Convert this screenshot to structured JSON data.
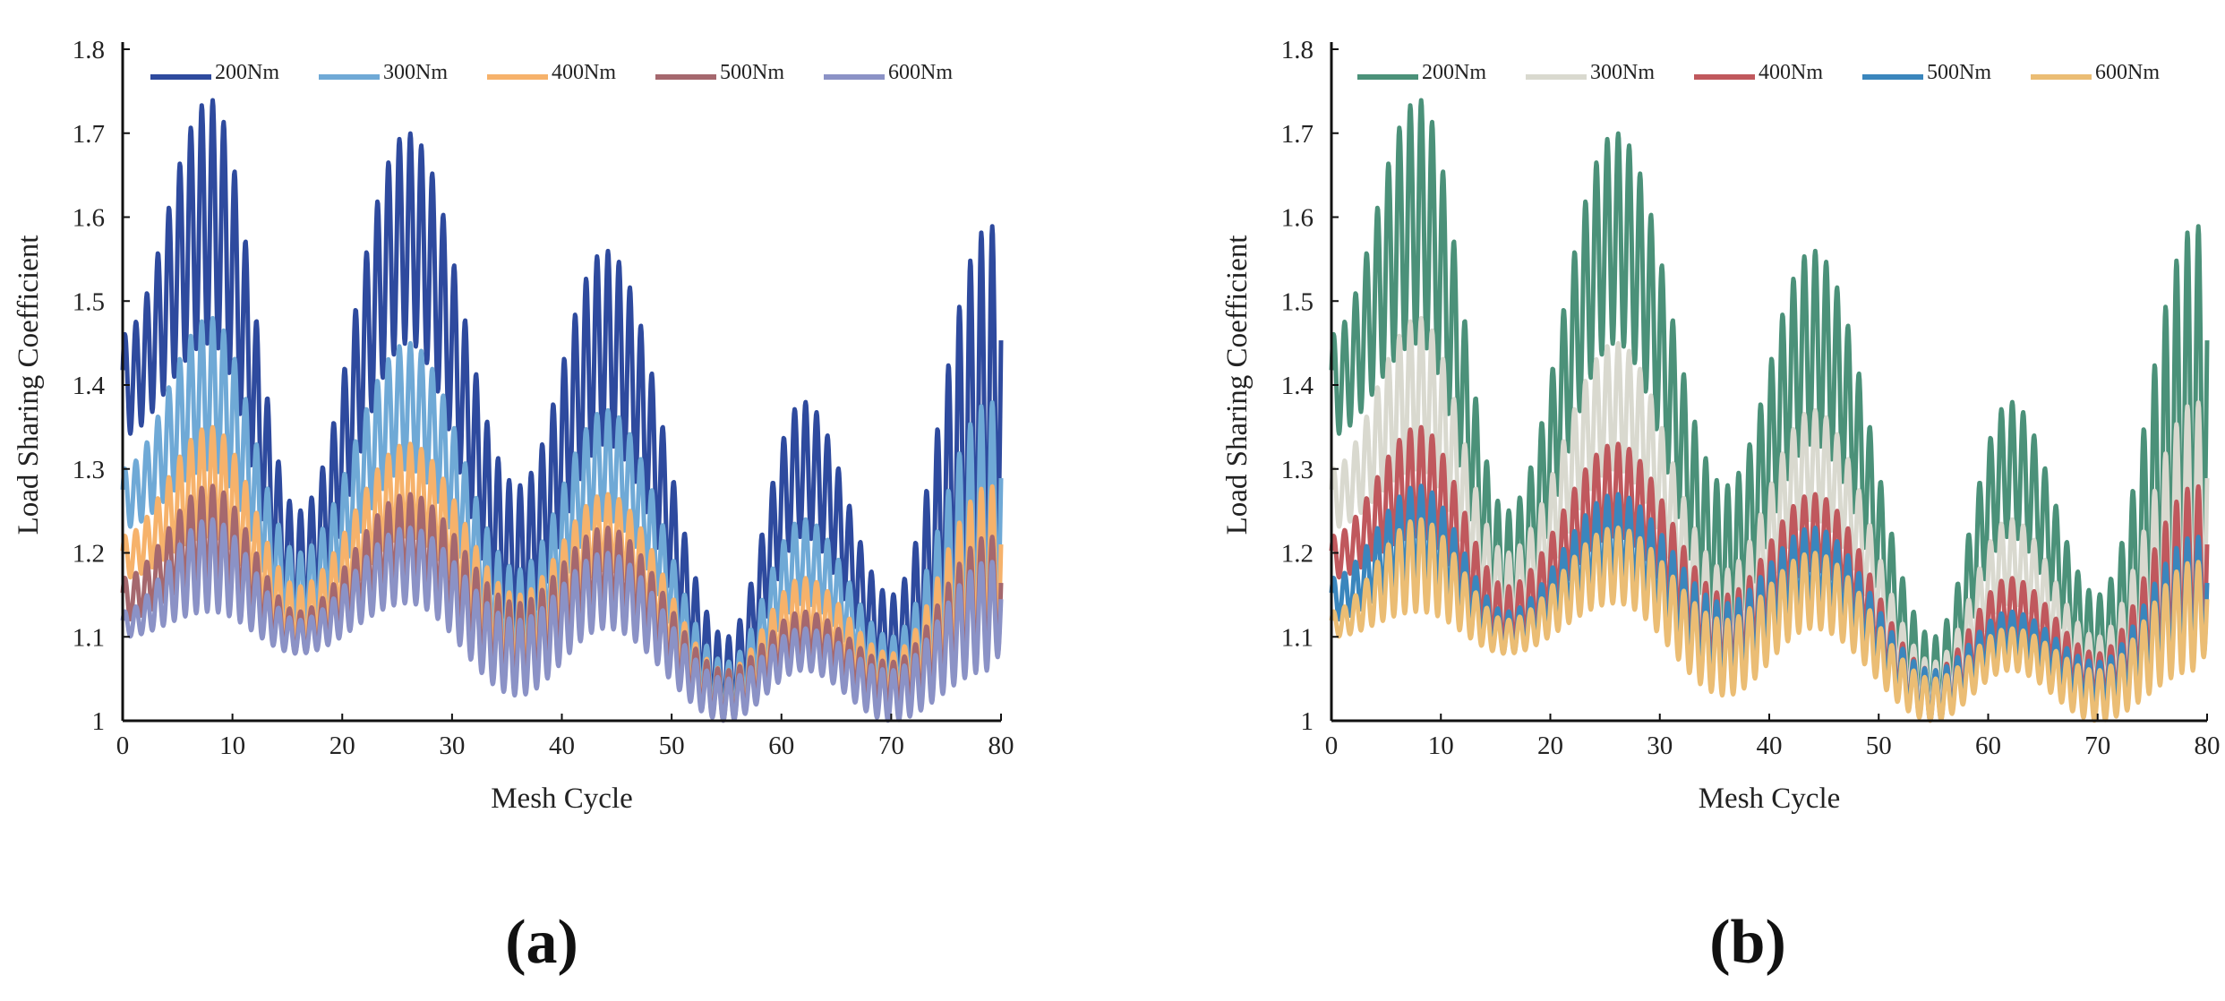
{
  "chart_data": [
    {
      "type": "line",
      "panel_label": "(a)",
      "title": "",
      "xlabel": "Mesh Cycle",
      "ylabel": "Load Sharing Coefficient",
      "xlim": [
        0,
        80
      ],
      "ylim": [
        1,
        1.8
      ],
      "xticks": [
        "0",
        "10",
        "20",
        "30",
        "40",
        "50",
        "60",
        "70",
        "80"
      ],
      "yticks": [
        "1",
        "1.1",
        "1.2",
        "1.3",
        "1.4",
        "1.5",
        "1.6",
        "1.7",
        "1.8"
      ],
      "legend_position": "top",
      "description_of_signal": "Each series oscillates at ~1 cycle per unit of mesh cycle, with a slow envelope; values below are envelope max/min at key mesh cycles.",
      "envelope_x": [
        0,
        8,
        16,
        26,
        36,
        44,
        55,
        62,
        70,
        79,
        80
      ],
      "series": [
        {
          "name": "200Nm",
          "color": "#2e4a9e",
          "upper": [
            1.46,
            1.74,
            1.25,
            1.7,
            1.28,
            1.56,
            1.1,
            1.38,
            1.15,
            1.59,
            1.58
          ],
          "lower": [
            1.34,
            1.45,
            1.12,
            1.45,
            1.11,
            1.33,
            1.01,
            1.22,
            1.05,
            1.18,
            1.22
          ]
        },
        {
          "name": "300Nm",
          "color": "#6fa9d6",
          "upper": [
            1.3,
            1.48,
            1.2,
            1.45,
            1.18,
            1.37,
            1.07,
            1.24,
            1.1,
            1.38,
            1.37
          ],
          "lower": [
            1.23,
            1.3,
            1.11,
            1.3,
            1.07,
            1.24,
            1.01,
            1.14,
            1.04,
            1.11,
            1.14
          ]
        },
        {
          "name": "400Nm",
          "color": "#f6b26b",
          "upper": [
            1.22,
            1.35,
            1.16,
            1.33,
            1.15,
            1.27,
            1.06,
            1.17,
            1.08,
            1.28,
            1.27
          ],
          "lower": [
            1.17,
            1.22,
            1.09,
            1.22,
            1.06,
            1.18,
            1.0,
            1.1,
            1.03,
            1.09,
            1.1
          ]
        },
        {
          "name": "500Nm",
          "color": "#a5686e",
          "upper": [
            1.17,
            1.28,
            1.13,
            1.27,
            1.14,
            1.23,
            1.06,
            1.13,
            1.07,
            1.22,
            1.21
          ],
          "lower": [
            1.12,
            1.17,
            1.08,
            1.17,
            1.04,
            1.14,
            1.0,
            1.08,
            1.02,
            1.07,
            1.08
          ]
        },
        {
          "name": "600Nm",
          "color": "#8b92c6",
          "upper": [
            1.13,
            1.24,
            1.12,
            1.23,
            1.12,
            1.2,
            1.05,
            1.11,
            1.06,
            1.19,
            1.18
          ],
          "lower": [
            1.1,
            1.13,
            1.08,
            1.14,
            1.03,
            1.11,
            1.0,
            1.06,
            1.0,
            1.06,
            1.08
          ]
        }
      ]
    },
    {
      "type": "line",
      "panel_label": "(b)",
      "title": "",
      "xlabel": "Mesh Cycle",
      "ylabel": "Load Sharing Coefficient",
      "xlim": [
        0,
        80
      ],
      "ylim": [
        1,
        1.8
      ],
      "xticks": [
        "0",
        "10",
        "20",
        "30",
        "40",
        "50",
        "60",
        "70",
        "80"
      ],
      "yticks": [
        "1",
        "1.1",
        "1.2",
        "1.3",
        "1.4",
        "1.5",
        "1.6",
        "1.7",
        "1.8"
      ],
      "legend_position": "top",
      "description_of_signal": "Same data as panel (a) with a different color palette.",
      "envelope_x": [
        0,
        8,
        16,
        26,
        36,
        44,
        55,
        62,
        70,
        79,
        80
      ],
      "series": [
        {
          "name": "200Nm",
          "color": "#4b9179",
          "upper": [
            1.46,
            1.74,
            1.25,
            1.7,
            1.28,
            1.56,
            1.1,
            1.38,
            1.15,
            1.59,
            1.58
          ],
          "lower": [
            1.34,
            1.45,
            1.12,
            1.45,
            1.11,
            1.33,
            1.01,
            1.22,
            1.05,
            1.18,
            1.22
          ]
        },
        {
          "name": "300Nm",
          "color": "#d9d9cf",
          "upper": [
            1.3,
            1.48,
            1.2,
            1.45,
            1.18,
            1.37,
            1.07,
            1.24,
            1.1,
            1.38,
            1.37
          ],
          "lower": [
            1.23,
            1.3,
            1.11,
            1.3,
            1.07,
            1.24,
            1.01,
            1.14,
            1.04,
            1.11,
            1.14
          ]
        },
        {
          "name": "400Nm",
          "color": "#c0585d",
          "upper": [
            1.22,
            1.35,
            1.16,
            1.33,
            1.15,
            1.27,
            1.06,
            1.17,
            1.08,
            1.28,
            1.27
          ],
          "lower": [
            1.17,
            1.22,
            1.09,
            1.22,
            1.06,
            1.18,
            1.0,
            1.1,
            1.03,
            1.09,
            1.1
          ]
        },
        {
          "name": "500Nm",
          "color": "#3a86bd",
          "upper": [
            1.17,
            1.28,
            1.13,
            1.27,
            1.14,
            1.23,
            1.06,
            1.13,
            1.07,
            1.22,
            1.21
          ],
          "lower": [
            1.12,
            1.17,
            1.08,
            1.17,
            1.04,
            1.14,
            1.0,
            1.08,
            1.02,
            1.07,
            1.08
          ]
        },
        {
          "name": "600Nm",
          "color": "#ebbd74",
          "upper": [
            1.13,
            1.24,
            1.12,
            1.23,
            1.12,
            1.2,
            1.05,
            1.11,
            1.06,
            1.19,
            1.18
          ],
          "lower": [
            1.1,
            1.13,
            1.08,
            1.14,
            1.03,
            1.11,
            1.0,
            1.06,
            1.0,
            1.06,
            1.08
          ]
        }
      ]
    }
  ]
}
